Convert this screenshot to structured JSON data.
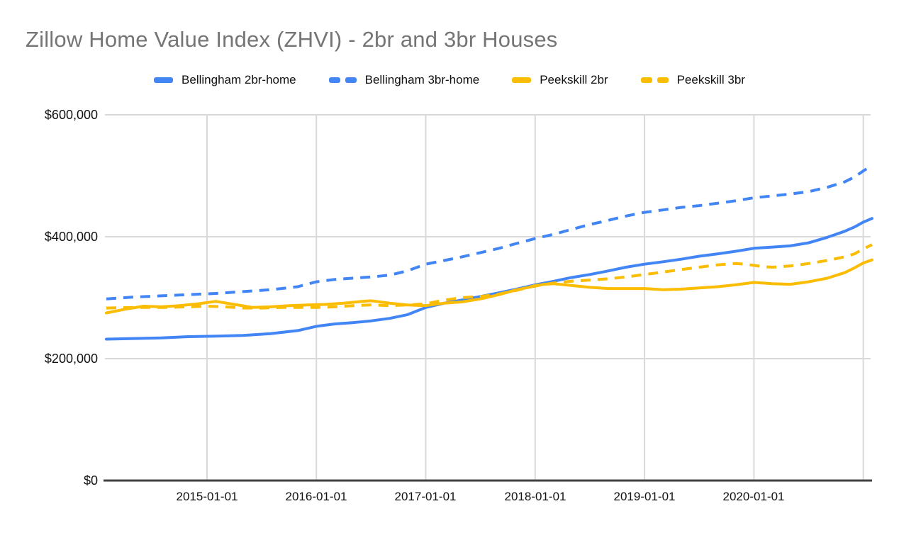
{
  "header": {
    "title": "Zillow Home Value Index (ZHVI) - 2br and 3br Houses",
    "title_color": "#757575"
  },
  "legend": {
    "position": "top",
    "items": [
      {
        "label": "Bellingham 2br-home",
        "color": "#4285F4",
        "style": "solid"
      },
      {
        "label": "Bellingham 3br-home",
        "color": "#4285F4",
        "style": "dashed"
      },
      {
        "label": "Peekskill 2br",
        "color": "#FBBC04",
        "style": "solid"
      },
      {
        "label": "Peekskill 3br",
        "color": "#FBBC04",
        "style": "dashed"
      }
    ]
  },
  "axes": {
    "y": {
      "ticks": [
        "$0",
        "$200,000",
        "$400,000",
        "$600,000"
      ],
      "values": [
        0,
        200000,
        400000,
        600000
      ]
    },
    "x": {
      "ticks": [
        "2015-01-01",
        "2016-01-01",
        "2017-01-01",
        "2018-01-01",
        "2019-01-01",
        "2020-01-01"
      ],
      "tick_years": [
        2015,
        2016,
        2017,
        2018,
        2019,
        2020
      ]
    }
  },
  "chart_data": {
    "type": "line",
    "title": "Zillow Home Value Index (ZHVI) - 2br and 3br Houses",
    "xlabel": "",
    "ylabel": "",
    "ylim": [
      0,
      600000
    ],
    "x_range_years": [
      2014.067,
      2021.067
    ],
    "x_gridline_years": [
      2015,
      2016,
      2017,
      2018,
      2019,
      2020,
      2021
    ],
    "grid": true,
    "legend_position": "top",
    "axis_color": "#424242",
    "gridline_color": "#d9d9d9",
    "series": [
      {
        "name": "Bellingham 2br-home",
        "color": "#4285F4",
        "style": "solid",
        "points": [
          [
            2014.08,
            232000
          ],
          [
            2014.33,
            233000
          ],
          [
            2014.58,
            234000
          ],
          [
            2014.83,
            236000
          ],
          [
            2015.08,
            237000
          ],
          [
            2015.33,
            238000
          ],
          [
            2015.58,
            241000
          ],
          [
            2015.83,
            246000
          ],
          [
            2016.0,
            253000
          ],
          [
            2016.17,
            257000
          ],
          [
            2016.33,
            259000
          ],
          [
            2016.5,
            262000
          ],
          [
            2016.67,
            266000
          ],
          [
            2016.83,
            272000
          ],
          [
            2017.0,
            284000
          ],
          [
            2017.17,
            291000
          ],
          [
            2017.33,
            296000
          ],
          [
            2017.5,
            302000
          ],
          [
            2017.67,
            308000
          ],
          [
            2017.83,
            314000
          ],
          [
            2018.0,
            321000
          ],
          [
            2018.17,
            327000
          ],
          [
            2018.33,
            333000
          ],
          [
            2018.5,
            338000
          ],
          [
            2018.67,
            344000
          ],
          [
            2018.83,
            350000
          ],
          [
            2019.0,
            355000
          ],
          [
            2019.17,
            359000
          ],
          [
            2019.33,
            363000
          ],
          [
            2019.5,
            368000
          ],
          [
            2019.67,
            372000
          ],
          [
            2019.83,
            376000
          ],
          [
            2020.0,
            381000
          ],
          [
            2020.17,
            383000
          ],
          [
            2020.33,
            385000
          ],
          [
            2020.5,
            390000
          ],
          [
            2020.67,
            399000
          ],
          [
            2020.83,
            409000
          ],
          [
            2020.92,
            416000
          ],
          [
            2021.0,
            424000
          ],
          [
            2021.08,
            430000
          ]
        ]
      },
      {
        "name": "Bellingham 3br-home",
        "color": "#4285F4",
        "style": "dashed",
        "points": [
          [
            2014.08,
            298000
          ],
          [
            2014.33,
            301000
          ],
          [
            2014.58,
            303000
          ],
          [
            2014.83,
            305000
          ],
          [
            2015.08,
            307000
          ],
          [
            2015.33,
            310000
          ],
          [
            2015.58,
            313000
          ],
          [
            2015.83,
            318000
          ],
          [
            2016.0,
            326000
          ],
          [
            2016.17,
            330000
          ],
          [
            2016.33,
            332000
          ],
          [
            2016.5,
            334000
          ],
          [
            2016.67,
            337000
          ],
          [
            2016.83,
            344000
          ],
          [
            2017.0,
            355000
          ],
          [
            2017.17,
            361000
          ],
          [
            2017.33,
            367000
          ],
          [
            2017.5,
            374000
          ],
          [
            2017.67,
            381000
          ],
          [
            2017.83,
            389000
          ],
          [
            2018.0,
            397000
          ],
          [
            2018.17,
            404000
          ],
          [
            2018.33,
            412000
          ],
          [
            2018.5,
            420000
          ],
          [
            2018.67,
            427000
          ],
          [
            2018.83,
            434000
          ],
          [
            2019.0,
            440000
          ],
          [
            2019.17,
            444000
          ],
          [
            2019.33,
            448000
          ],
          [
            2019.5,
            451000
          ],
          [
            2019.67,
            455000
          ],
          [
            2019.83,
            459000
          ],
          [
            2020.0,
            464000
          ],
          [
            2020.17,
            467000
          ],
          [
            2020.33,
            470000
          ],
          [
            2020.5,
            474000
          ],
          [
            2020.67,
            481000
          ],
          [
            2020.83,
            490000
          ],
          [
            2020.92,
            498000
          ],
          [
            2021.0,
            508000
          ],
          [
            2021.08,
            517000
          ]
        ]
      },
      {
        "name": "Peekskill 2br",
        "color": "#FBBC04",
        "style": "solid",
        "points": [
          [
            2014.08,
            275000
          ],
          [
            2014.25,
            281000
          ],
          [
            2014.42,
            286000
          ],
          [
            2014.58,
            285000
          ],
          [
            2014.75,
            287000
          ],
          [
            2014.92,
            290000
          ],
          [
            2015.08,
            294000
          ],
          [
            2015.25,
            289000
          ],
          [
            2015.42,
            284000
          ],
          [
            2015.58,
            285000
          ],
          [
            2015.75,
            287000
          ],
          [
            2015.92,
            288000
          ],
          [
            2016.08,
            289000
          ],
          [
            2016.25,
            291000
          ],
          [
            2016.42,
            294000
          ],
          [
            2016.5,
            295000
          ],
          [
            2016.67,
            291000
          ],
          [
            2016.83,
            288000
          ],
          [
            2017.0,
            287000
          ],
          [
            2017.17,
            291000
          ],
          [
            2017.33,
            293000
          ],
          [
            2017.5,
            298000
          ],
          [
            2017.67,
            305000
          ],
          [
            2017.83,
            313000
          ],
          [
            2018.0,
            319000
          ],
          [
            2018.08,
            322000
          ],
          [
            2018.17,
            323000
          ],
          [
            2018.33,
            320000
          ],
          [
            2018.5,
            317000
          ],
          [
            2018.67,
            315000
          ],
          [
            2018.83,
            315000
          ],
          [
            2019.0,
            315000
          ],
          [
            2019.17,
            313000
          ],
          [
            2019.33,
            314000
          ],
          [
            2019.5,
            316000
          ],
          [
            2019.67,
            318000
          ],
          [
            2019.83,
            321000
          ],
          [
            2020.0,
            325000
          ],
          [
            2020.17,
            323000
          ],
          [
            2020.33,
            322000
          ],
          [
            2020.5,
            326000
          ],
          [
            2020.67,
            332000
          ],
          [
            2020.83,
            341000
          ],
          [
            2020.92,
            349000
          ],
          [
            2021.0,
            357000
          ],
          [
            2021.08,
            362000
          ]
        ]
      },
      {
        "name": "Peekskill 3br",
        "color": "#FBBC04",
        "style": "dashed",
        "points": [
          [
            2014.08,
            283000
          ],
          [
            2014.33,
            284000
          ],
          [
            2014.58,
            284000
          ],
          [
            2014.83,
            285000
          ],
          [
            2015.0,
            286000
          ],
          [
            2015.17,
            285000
          ],
          [
            2015.33,
            283000
          ],
          [
            2015.5,
            283000
          ],
          [
            2015.67,
            284000
          ],
          [
            2015.83,
            284000
          ],
          [
            2016.0,
            284000
          ],
          [
            2016.17,
            285000
          ],
          [
            2016.33,
            287000
          ],
          [
            2016.5,
            288000
          ],
          [
            2016.67,
            287000
          ],
          [
            2016.83,
            288000
          ],
          [
            2017.0,
            290000
          ],
          [
            2017.17,
            296000
          ],
          [
            2017.33,
            300000
          ],
          [
            2017.5,
            302000
          ],
          [
            2017.67,
            306000
          ],
          [
            2017.83,
            312000
          ],
          [
            2018.0,
            320000
          ],
          [
            2018.17,
            324000
          ],
          [
            2018.33,
            327000
          ],
          [
            2018.5,
            329000
          ],
          [
            2018.67,
            331000
          ],
          [
            2018.83,
            334000
          ],
          [
            2019.0,
            338000
          ],
          [
            2019.17,
            342000
          ],
          [
            2019.33,
            346000
          ],
          [
            2019.5,
            350000
          ],
          [
            2019.67,
            354000
          ],
          [
            2019.83,
            356000
          ],
          [
            2019.92,
            355000
          ],
          [
            2020.08,
            351000
          ],
          [
            2020.17,
            350000
          ],
          [
            2020.33,
            352000
          ],
          [
            2020.5,
            356000
          ],
          [
            2020.67,
            361000
          ],
          [
            2020.83,
            367000
          ],
          [
            2020.92,
            372000
          ],
          [
            2021.0,
            380000
          ],
          [
            2021.08,
            387000
          ]
        ]
      }
    ]
  }
}
